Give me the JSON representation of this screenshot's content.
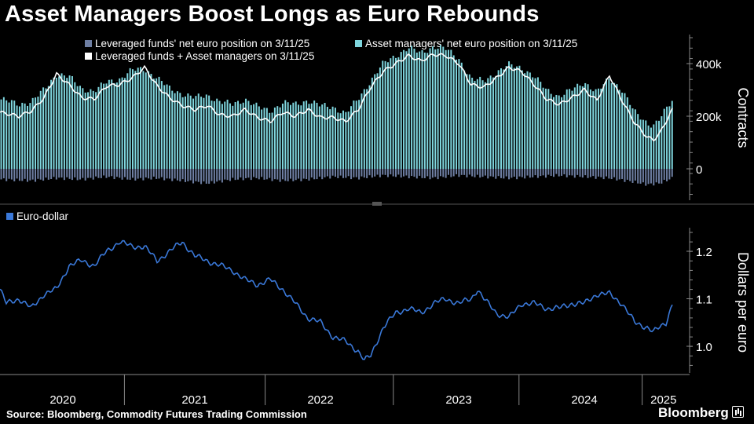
{
  "title": "Asset Managers Boost Longs as Euro Rebounds",
  "source": "Source: Bloomberg, Commodity Futures Trading Commission",
  "brand": "Bloomberg",
  "colors": {
    "leveraged": "#6e7fa3",
    "asset_managers": "#7fd6de",
    "combined": "#ffffff",
    "eurusd": "#3a78d8",
    "axis": "#888888"
  },
  "chart_data": [
    {
      "type": "bar",
      "title": "Asset Managers Boost Longs as Euro Rebounds",
      "ylabel": "Contracts",
      "ylim": [
        -120000,
        520000
      ],
      "yticks": [
        {
          "value": 0,
          "label": "0"
        },
        {
          "value": 200000,
          "label": "200k"
        },
        {
          "value": 400000,
          "label": "400k"
        }
      ],
      "x_range": [
        2019.85,
        2025.2
      ],
      "legend": [
        "Leveraged funds' net euro position on 3/11/25",
        "Asset managers' net euro position on 3/11/25",
        "Leveraged funds + Asset managers on 3/11/25"
      ],
      "series": [
        {
          "name": "Asset managers' net euro position",
          "points": [
            [
              2019.85,
              265000
            ],
            [
              2020.0,
              245000
            ],
            [
              2020.1,
              255000
            ],
            [
              2020.2,
              300000
            ],
            [
              2020.3,
              360000
            ],
            [
              2020.4,
              350000
            ],
            [
              2020.5,
              305000
            ],
            [
              2020.6,
              295000
            ],
            [
              2020.7,
              330000
            ],
            [
              2020.8,
              340000
            ],
            [
              2020.9,
              375000
            ],
            [
              2021.0,
              380000
            ],
            [
              2021.1,
              345000
            ],
            [
              2021.2,
              305000
            ],
            [
              2021.3,
              285000
            ],
            [
              2021.4,
              270000
            ],
            [
              2021.5,
              280000
            ],
            [
              2021.6,
              255000
            ],
            [
              2021.7,
              245000
            ],
            [
              2021.8,
              265000
            ],
            [
              2021.9,
              235000
            ],
            [
              2022.0,
              220000
            ],
            [
              2022.1,
              250000
            ],
            [
              2022.2,
              245000
            ],
            [
              2022.3,
              260000
            ],
            [
              2022.4,
              240000
            ],
            [
              2022.5,
              235000
            ],
            [
              2022.6,
              210000
            ],
            [
              2022.7,
              265000
            ],
            [
              2022.8,
              335000
            ],
            [
              2022.9,
              400000
            ],
            [
              2023.0,
              430000
            ],
            [
              2023.1,
              460000
            ],
            [
              2023.2,
              440000
            ],
            [
              2023.3,
              465000
            ],
            [
              2023.4,
              455000
            ],
            [
              2023.5,
              420000
            ],
            [
              2023.6,
              340000
            ],
            [
              2023.7,
              335000
            ],
            [
              2023.8,
              365000
            ],
            [
              2023.9,
              395000
            ],
            [
              2024.0,
              385000
            ],
            [
              2024.1,
              350000
            ],
            [
              2024.2,
              300000
            ],
            [
              2024.3,
              275000
            ],
            [
              2024.4,
              300000
            ],
            [
              2024.5,
              330000
            ],
            [
              2024.6,
              290000
            ],
            [
              2024.7,
              345000
            ],
            [
              2024.8,
              300000
            ],
            [
              2024.9,
              215000
            ],
            [
              2025.0,
              175000
            ],
            [
              2025.05,
              165000
            ],
            [
              2025.1,
              190000
            ],
            [
              2025.2,
              260000
            ]
          ]
        },
        {
          "name": "Leveraged funds' net euro position",
          "points": [
            [
              2019.85,
              -40000
            ],
            [
              2020.1,
              -45000
            ],
            [
              2020.3,
              -35000
            ],
            [
              2020.5,
              -40000
            ],
            [
              2020.7,
              -30000
            ],
            [
              2020.9,
              -40000
            ],
            [
              2021.1,
              -35000
            ],
            [
              2021.3,
              -45000
            ],
            [
              2021.5,
              -55000
            ],
            [
              2021.7,
              -40000
            ],
            [
              2021.9,
              -35000
            ],
            [
              2022.1,
              -45000
            ],
            [
              2022.3,
              -40000
            ],
            [
              2022.5,
              -30000
            ],
            [
              2022.7,
              -35000
            ],
            [
              2022.9,
              -25000
            ],
            [
              2023.1,
              -30000
            ],
            [
              2023.3,
              -35000
            ],
            [
              2023.5,
              -25000
            ],
            [
              2023.7,
              -30000
            ],
            [
              2023.9,
              -35000
            ],
            [
              2024.1,
              -30000
            ],
            [
              2024.3,
              -25000
            ],
            [
              2024.5,
              -30000
            ],
            [
              2024.7,
              -35000
            ],
            [
              2024.9,
              -50000
            ],
            [
              2025.0,
              -60000
            ],
            [
              2025.1,
              -55000
            ],
            [
              2025.2,
              -35000
            ]
          ]
        },
        {
          "name": "Leveraged funds + Asset managers",
          "points": [
            [
              2019.85,
              215000
            ],
            [
              2020.0,
              200000
            ],
            [
              2020.1,
              220000
            ],
            [
              2020.2,
              270000
            ],
            [
              2020.3,
              360000
            ],
            [
              2020.4,
              320000
            ],
            [
              2020.5,
              270000
            ],
            [
              2020.6,
              265000
            ],
            [
              2020.7,
              315000
            ],
            [
              2020.8,
              320000
            ],
            [
              2020.9,
              345000
            ],
            [
              2021.0,
              385000
            ],
            [
              2021.1,
              315000
            ],
            [
              2021.2,
              270000
            ],
            [
              2021.3,
              240000
            ],
            [
              2021.4,
              225000
            ],
            [
              2021.5,
              240000
            ],
            [
              2021.6,
              205000
            ],
            [
              2021.7,
              200000
            ],
            [
              2021.8,
              225000
            ],
            [
              2021.9,
              195000
            ],
            [
              2022.0,
              180000
            ],
            [
              2022.1,
              215000
            ],
            [
              2022.2,
              200000
            ],
            [
              2022.3,
              225000
            ],
            [
              2022.4,
              195000
            ],
            [
              2022.5,
              195000
            ],
            [
              2022.6,
              180000
            ],
            [
              2022.7,
              225000
            ],
            [
              2022.8,
              310000
            ],
            [
              2022.9,
              370000
            ],
            [
              2023.0,
              400000
            ],
            [
              2023.1,
              430000
            ],
            [
              2023.2,
              410000
            ],
            [
              2023.3,
              435000
            ],
            [
              2023.4,
              430000
            ],
            [
              2023.5,
              400000
            ],
            [
              2023.6,
              320000
            ],
            [
              2023.7,
              310000
            ],
            [
              2023.8,
              345000
            ],
            [
              2023.9,
              385000
            ],
            [
              2024.0,
              370000
            ],
            [
              2024.1,
              320000
            ],
            [
              2024.2,
              265000
            ],
            [
              2024.3,
              245000
            ],
            [
              2024.4,
              270000
            ],
            [
              2024.5,
              300000
            ],
            [
              2024.6,
              260000
            ],
            [
              2024.7,
              355000
            ],
            [
              2024.8,
              260000
            ],
            [
              2024.9,
              175000
            ],
            [
              2025.0,
              120000
            ],
            [
              2025.05,
              110000
            ],
            [
              2025.1,
              135000
            ],
            [
              2025.2,
              225000
            ]
          ]
        }
      ]
    },
    {
      "type": "line",
      "ylabel": "Dollars per euro",
      "ylim": [
        0.94,
        1.26
      ],
      "yticks": [
        {
          "value": 1.0,
          "label": "1.0"
        },
        {
          "value": 1.1,
          "label": "1.1"
        },
        {
          "value": 1.2,
          "label": "1.2"
        }
      ],
      "x_range": [
        2019.85,
        2025.2
      ],
      "xticks": [
        {
          "value": 2020.35,
          "label": "2020"
        },
        {
          "value": 2021.4,
          "label": "2021"
        },
        {
          "value": 2022.4,
          "label": "2022"
        },
        {
          "value": 2023.5,
          "label": "2023"
        },
        {
          "value": 2024.5,
          "label": "2024"
        },
        {
          "value": 2025.13,
          "label": "2025"
        }
      ],
      "year_boundaries": [
        2020.84,
        2021.96,
        2022.98,
        2023.98,
        2024.96
      ],
      "series": [
        {
          "name": "Euro-dollar",
          "points": [
            [
              2019.85,
              1.12
            ],
            [
              2019.9,
              1.09
            ],
            [
              2020.0,
              1.1
            ],
            [
              2020.1,
              1.08
            ],
            [
              2020.2,
              1.11
            ],
            [
              2020.3,
              1.12
            ],
            [
              2020.4,
              1.17
            ],
            [
              2020.5,
              1.18
            ],
            [
              2020.6,
              1.17
            ],
            [
              2020.7,
              1.2
            ],
            [
              2020.8,
              1.22
            ],
            [
              2020.9,
              1.21
            ],
            [
              2021.0,
              1.21
            ],
            [
              2021.1,
              1.18
            ],
            [
              2021.2,
              1.2
            ],
            [
              2021.25,
              1.21
            ],
            [
              2021.3,
              1.22
            ],
            [
              2021.4,
              1.19
            ],
            [
              2021.5,
              1.18
            ],
            [
              2021.6,
              1.17
            ],
            [
              2021.7,
              1.16
            ],
            [
              2021.8,
              1.14
            ],
            [
              2021.9,
              1.13
            ],
            [
              2022.0,
              1.14
            ],
            [
              2022.05,
              1.13
            ],
            [
              2022.1,
              1.12
            ],
            [
              2022.2,
              1.09
            ],
            [
              2022.3,
              1.06
            ],
            [
              2022.4,
              1.05
            ],
            [
              2022.5,
              1.02
            ],
            [
              2022.6,
              1.01
            ],
            [
              2022.7,
              0.99
            ],
            [
              2022.75,
              0.97
            ],
            [
              2022.8,
              0.98
            ],
            [
              2022.9,
              1.04
            ],
            [
              2023.0,
              1.07
            ],
            [
              2023.1,
              1.08
            ],
            [
              2023.2,
              1.07
            ],
            [
              2023.3,
              1.09
            ],
            [
              2023.4,
              1.1
            ],
            [
              2023.5,
              1.09
            ],
            [
              2023.6,
              1.1
            ],
            [
              2023.65,
              1.12
            ],
            [
              2023.7,
              1.1
            ],
            [
              2023.8,
              1.07
            ],
            [
              2023.9,
              1.06
            ],
            [
              2024.0,
              1.09
            ],
            [
              2024.1,
              1.09
            ],
            [
              2024.2,
              1.08
            ],
            [
              2024.3,
              1.08
            ],
            [
              2024.4,
              1.09
            ],
            [
              2024.5,
              1.09
            ],
            [
              2024.6,
              1.11
            ],
            [
              2024.7,
              1.11
            ],
            [
              2024.8,
              1.09
            ],
            [
              2024.9,
              1.05
            ],
            [
              2025.0,
              1.04
            ],
            [
              2025.05,
              1.03
            ],
            [
              2025.1,
              1.04
            ],
            [
              2025.15,
              1.05
            ],
            [
              2025.2,
              1.09
            ]
          ]
        }
      ]
    }
  ]
}
